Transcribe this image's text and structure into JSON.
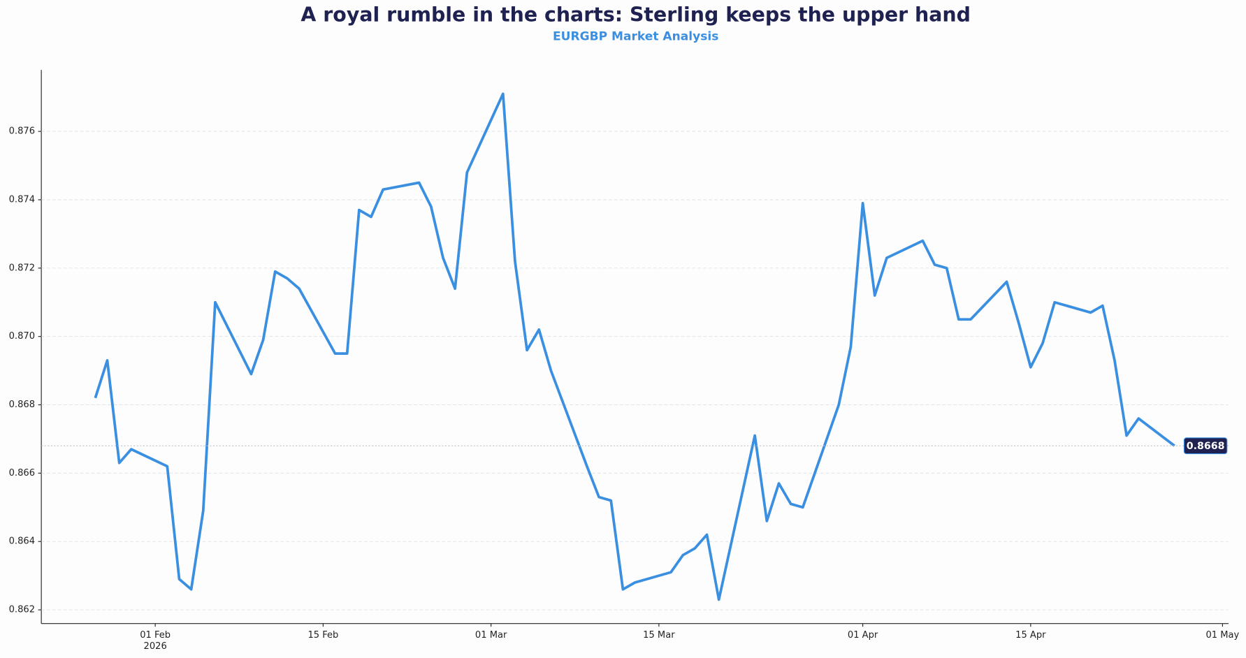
{
  "chart_data": {
    "type": "line",
    "title": "A royal rumble in the charts: Sterling keeps the upper hand",
    "subtitle": "EURGBP Market Analysis",
    "x": [
      "2026-01-27",
      "2026-01-28",
      "2026-01-29",
      "2026-01-30",
      "2026-02-02",
      "2026-02-03",
      "2026-02-04",
      "2026-02-05",
      "2026-02-06",
      "2026-02-09",
      "2026-02-10",
      "2026-02-11",
      "2026-02-12",
      "2026-02-13",
      "2026-02-16",
      "2026-02-17",
      "2026-02-18",
      "2026-02-19",
      "2026-02-20",
      "2026-02-23",
      "2026-02-24",
      "2026-02-25",
      "2026-02-26",
      "2026-02-27",
      "2026-03-02",
      "2026-03-03",
      "2026-03-04",
      "2026-03-05",
      "2026-03-06",
      "2026-03-09",
      "2026-03-10",
      "2026-03-11",
      "2026-03-12",
      "2026-03-13",
      "2026-03-16",
      "2026-03-17",
      "2026-03-18",
      "2026-03-19",
      "2026-03-20",
      "2026-03-23",
      "2026-03-24",
      "2026-03-25",
      "2026-03-26",
      "2026-03-27",
      "2026-03-30",
      "2026-03-31",
      "2026-04-01",
      "2026-04-02",
      "2026-04-03",
      "2026-04-06",
      "2026-04-07",
      "2026-04-08",
      "2026-04-09",
      "2026-04-10",
      "2026-04-13",
      "2026-04-14",
      "2026-04-15",
      "2026-04-16",
      "2026-04-17",
      "2026-04-20",
      "2026-04-21",
      "2026-04-22",
      "2026-04-23",
      "2026-04-24",
      "2026-04-27"
    ],
    "series": [
      {
        "name": "EURGBP",
        "color": "#3a8fe0",
        "values": [
          0.8682,
          0.8693,
          0.8663,
          0.8667,
          0.8662,
          0.8629,
          0.8626,
          0.8649,
          0.871,
          0.8689,
          0.8699,
          0.8719,
          0.8717,
          0.8714,
          0.8695,
          0.8695,
          0.8737,
          0.8735,
          0.8743,
          0.8745,
          0.8738,
          0.8723,
          0.8714,
          0.8748,
          0.8771,
          0.8722,
          0.8696,
          0.8702,
          0.869,
          0.8662,
          0.8653,
          0.8652,
          0.8626,
          0.8628,
          0.8631,
          0.8636,
          0.8638,
          0.8642,
          0.8623,
          0.8671,
          0.8646,
          0.8657,
          0.8651,
          0.865,
          0.868,
          0.8697,
          0.8739,
          0.8712,
          0.8723,
          0.8728,
          0.8721,
          0.872,
          0.8705,
          0.8705,
          0.8716,
          0.8704,
          0.8691,
          0.8698,
          0.871,
          0.8707,
          0.8709,
          0.8693,
          0.8671,
          0.8676,
          0.8668
        ]
      }
    ],
    "last_value_label": "0.8668",
    "xlim": [
      "2026-01-22T12:00",
      "2026-05-01T12:00"
    ],
    "xticks": [
      {
        "value": "2026-02-01",
        "label": "01 Feb"
      },
      {
        "value": "2026-02-15",
        "label": "15 Feb"
      },
      {
        "value": "2026-03-01",
        "label": "01 Mar"
      },
      {
        "value": "2026-03-15",
        "label": "15 Mar"
      },
      {
        "value": "2026-04-01",
        "label": "01 Apr"
      },
      {
        "value": "2026-04-15",
        "label": "15 Apr"
      },
      {
        "value": "2026-05-01",
        "label": "01 May"
      }
    ],
    "x_year_label": "2026",
    "ylim": [
      0.8616,
      0.8778
    ],
    "yticks": [
      {
        "value": 0.862,
        "label": "0.862"
      },
      {
        "value": 0.864,
        "label": "0.864"
      },
      {
        "value": 0.866,
        "label": "0.866"
      },
      {
        "value": 0.868,
        "label": "0.868"
      },
      {
        "value": 0.87,
        "label": "0.870"
      },
      {
        "value": 0.872,
        "label": "0.872"
      },
      {
        "value": 0.874,
        "label": "0.874"
      },
      {
        "value": 0.876,
        "label": "0.876"
      }
    ],
    "grid": true
  }
}
